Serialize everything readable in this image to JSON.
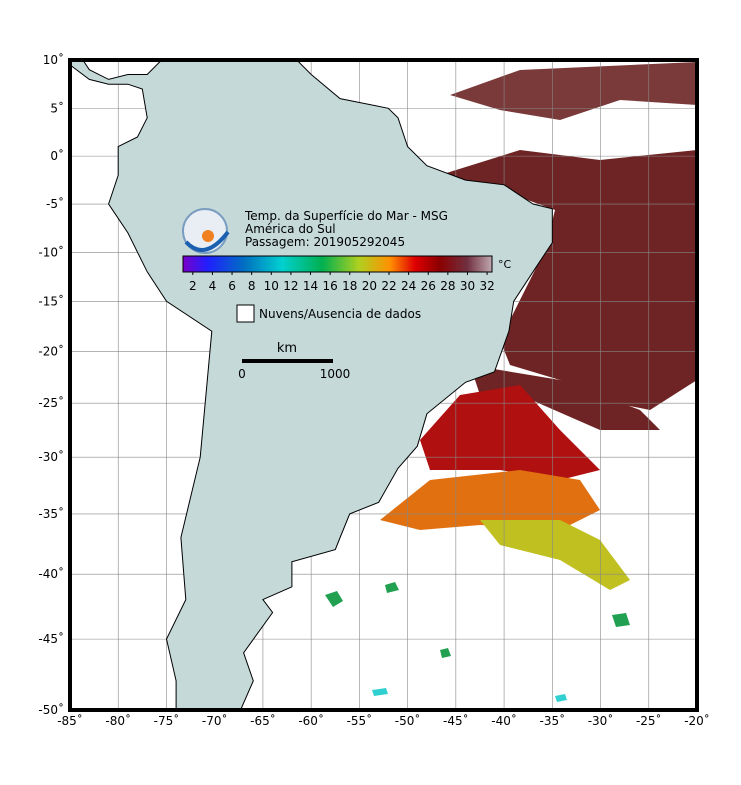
{
  "map": {
    "title": "Temp. da Superfície do Mar - MSG",
    "region": "América do Sul",
    "pass": "Passagem: 201905292045",
    "lonlim": [
      -85,
      -20
    ],
    "latlim": [
      -50,
      10
    ],
    "lon_ticks": [
      {
        "value": -85,
        "label": "-85˚"
      },
      {
        "value": -80,
        "label": "-80˚"
      },
      {
        "value": -75,
        "label": "-75˚"
      },
      {
        "value": -70,
        "label": "-70˚"
      },
      {
        "value": -65,
        "label": "-65˚"
      },
      {
        "value": -60,
        "label": "-60˚"
      },
      {
        "value": -55,
        "label": "-55˚"
      },
      {
        "value": -50,
        "label": "-50˚"
      },
      {
        "value": -45,
        "label": "-45˚"
      },
      {
        "value": -40,
        "label": "-40˚"
      },
      {
        "value": -35,
        "label": "-35˚"
      },
      {
        "value": -30,
        "label": "-30˚"
      },
      {
        "value": -25,
        "label": "-25˚"
      },
      {
        "value": -20,
        "label": "-20˚"
      }
    ],
    "lat_ticks": [
      {
        "value": 10,
        "label": "10˚"
      },
      {
        "value": 5,
        "label": "5˚"
      },
      {
        "value": 0,
        "label": "0˚"
      },
      {
        "value": -5,
        "label": "-5˚"
      },
      {
        "value": -10,
        "label": "-10˚"
      },
      {
        "value": -15,
        "label": "-15˚"
      },
      {
        "value": -20,
        "label": "-20˚"
      },
      {
        "value": -25,
        "label": "-25˚"
      },
      {
        "value": -30,
        "label": "-30˚"
      },
      {
        "value": -35,
        "label": "-35˚"
      },
      {
        "value": -40,
        "label": "-40˚"
      },
      {
        "value": -45,
        "label": "-45˚"
      },
      {
        "value": -50,
        "label": "-50˚"
      }
    ],
    "colorbar": {
      "unit": "°C",
      "range": [
        1,
        32.5
      ],
      "ticks": [
        2,
        4,
        6,
        8,
        10,
        12,
        14,
        16,
        18,
        20,
        22,
        24,
        26,
        28,
        30,
        32
      ]
    },
    "legend": "Nuvens/Ausencia de dados",
    "scale_bar": {
      "unit": "km",
      "ticks": [
        0,
        1000
      ]
    }
  }
}
